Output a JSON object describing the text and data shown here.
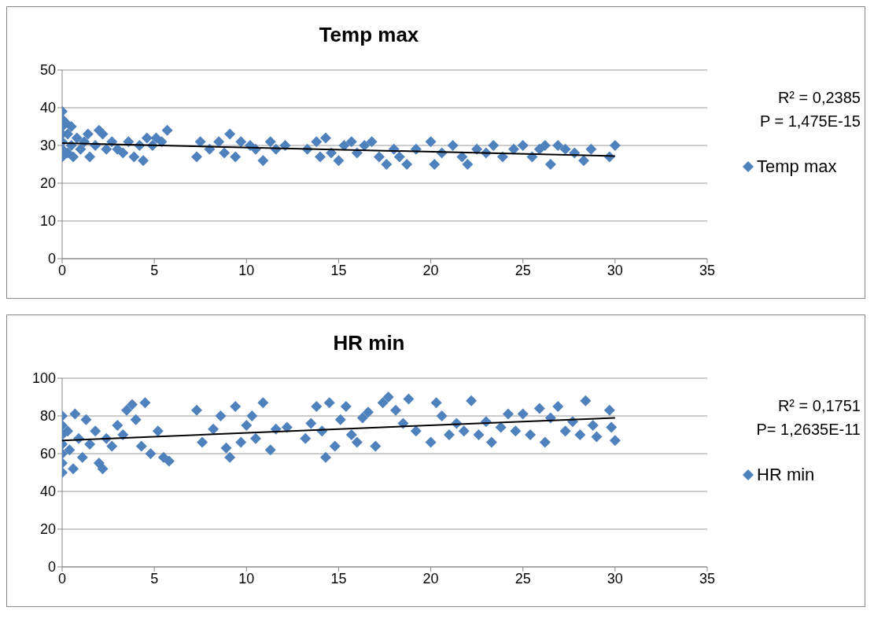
{
  "chart_data": [
    {
      "type": "scatter",
      "title": "Temp max",
      "xlim": [
        0,
        35
      ],
      "xticks": [
        0,
        5,
        10,
        15,
        20,
        25,
        30,
        35
      ],
      "ylim": [
        0,
        50
      ],
      "yticks": [
        0,
        10,
        20,
        30,
        40,
        50
      ],
      "grid": "y",
      "legend": "right",
      "marker": "diamond",
      "annotations": [
        "R² = 0,2385",
        "P = 1,475E-15"
      ],
      "series": [
        {
          "name": "Temp max",
          "color": "#4f81bd",
          "x": [
            0,
            0,
            0,
            0,
            0,
            0,
            0,
            0.2,
            0.3,
            0.3,
            0.5,
            0.5,
            0.6,
            0.8,
            1,
            1.2,
            1.4,
            1.5,
            1.8,
            2,
            2.2,
            2.4,
            2.7,
            3,
            3.3,
            3.6,
            3.9,
            4.2,
            4.4,
            4.6,
            4.9,
            5.1,
            5.4,
            5.7,
            7.3,
            7.5,
            8,
            8.5,
            8.8,
            9.1,
            9.4,
            9.7,
            10.2,
            10.5,
            10.9,
            11.3,
            11.6,
            12.1,
            13.3,
            13.8,
            14,
            14.3,
            14.6,
            15,
            15.3,
            15.7,
            16,
            16.4,
            16.8,
            17.2,
            17.6,
            18,
            18.3,
            18.7,
            19.2,
            20,
            20.2,
            20.6,
            21.2,
            21.7,
            22,
            22.5,
            23,
            23.4,
            23.9,
            24.5,
            25,
            25.5,
            25.9,
            26.2,
            26.5,
            26.9,
            27.3,
            27.8,
            28.3,
            28.7,
            29.7,
            30
          ],
          "values": [
            39,
            37,
            35,
            33,
            31,
            29,
            27,
            36,
            33,
            28,
            35,
            30,
            27,
            32,
            29,
            31,
            33,
            27,
            30,
            34,
            33,
            29,
            31,
            29,
            28,
            31,
            27,
            30,
            26,
            32,
            30,
            32,
            31,
            34,
            27,
            31,
            29,
            31,
            28,
            33,
            27,
            31,
            30,
            29,
            26,
            31,
            29,
            30,
            29,
            31,
            27,
            32,
            28,
            26,
            30,
            31,
            28,
            30,
            31,
            27,
            25,
            29,
            27,
            25,
            29,
            31,
            25,
            28,
            30,
            27,
            25,
            29,
            28,
            30,
            27,
            29,
            30,
            27,
            29,
            30,
            25,
            30,
            29,
            28,
            26,
            29,
            27,
            30
          ]
        },
        {
          "type": "line",
          "color": "#000000",
          "marker": "none",
          "x": [
            0,
            30
          ],
          "values": [
            30.6,
            27.2
          ]
        }
      ]
    },
    {
      "type": "scatter",
      "title": "HR min",
      "xlim": [
        0,
        35
      ],
      "xticks": [
        0,
        5,
        10,
        15,
        20,
        25,
        30,
        35
      ],
      "ylim": [
        0,
        100
      ],
      "yticks": [
        0,
        20,
        40,
        60,
        80,
        100
      ],
      "grid": "y",
      "legend": "right",
      "marker": "diamond",
      "annotations": [
        "R² = 0,1751",
        "P= 1,2635E-11"
      ],
      "series": [
        {
          "name": "HR min",
          "color": "#4f81bd",
          "x": [
            0,
            0,
            0,
            0,
            0,
            0,
            0,
            0.3,
            0.4,
            0.6,
            0.7,
            0.9,
            1.1,
            1.3,
            1.5,
            1.8,
            2,
            2.2,
            2.4,
            2.7,
            3,
            3.3,
            3.5,
            3.8,
            4,
            4.3,
            4.5,
            4.8,
            5.2,
            5.5,
            5.8,
            7.3,
            7.6,
            8.2,
            8.6,
            8.9,
            9.1,
            9.4,
            9.7,
            10,
            10.3,
            10.5,
            10.9,
            11.3,
            11.6,
            12.2,
            13.2,
            13.5,
            13.8,
            14.1,
            14.3,
            14.5,
            14.8,
            15.1,
            15.4,
            15.7,
            16,
            16.3,
            16.6,
            17,
            17.4,
            17.7,
            18.1,
            18.5,
            18.8,
            19.2,
            20,
            20.3,
            20.6,
            21,
            21.4,
            21.8,
            22.2,
            22.6,
            23,
            23.3,
            23.8,
            24.2,
            24.6,
            25,
            25.4,
            25.9,
            26.2,
            26.5,
            26.9,
            27.3,
            27.7,
            28.1,
            28.4,
            28.8,
            29,
            29.7,
            29.8,
            30
          ],
          "values": [
            50,
            55,
            60,
            65,
            70,
            75,
            80,
            72,
            62,
            52,
            81,
            68,
            58,
            78,
            65,
            72,
            55,
            52,
            68,
            64,
            75,
            70,
            83,
            86,
            78,
            64,
            87,
            60,
            72,
            58,
            56,
            83,
            66,
            73,
            80,
            63,
            58,
            85,
            66,
            75,
            80,
            68,
            87,
            62,
            73,
            74,
            68,
            76,
            85,
            72,
            58,
            87,
            64,
            78,
            85,
            70,
            66,
            79,
            82,
            64,
            87,
            90,
            83,
            76,
            89,
            72,
            66,
            87,
            80,
            70,
            76,
            72,
            88,
            70,
            77,
            66,
            74,
            81,
            72,
            81,
            70,
            84,
            66,
            79,
            85,
            72,
            77,
            70,
            88,
            75,
            69,
            83,
            74,
            67
          ]
        },
        {
          "type": "line",
          "color": "#000000",
          "marker": "none",
          "x": [
            0,
            30
          ],
          "values": [
            67,
            79
          ]
        }
      ]
    }
  ]
}
